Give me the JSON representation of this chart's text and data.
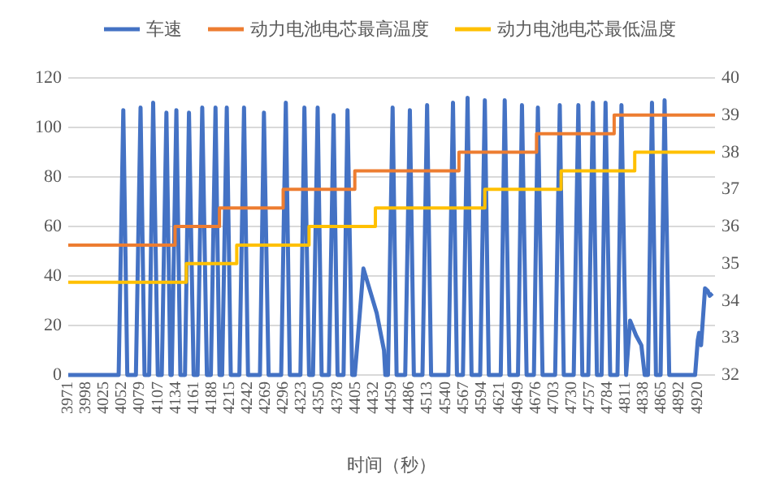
{
  "chart_data": {
    "type": "line",
    "xlabel": "时间（秒）",
    "xlim": [
      3971,
      4946
    ],
    "xticks": [
      3971,
      3998,
      4025,
      4052,
      4079,
      4107,
      4134,
      4161,
      4188,
      4215,
      4242,
      4269,
      4296,
      4323,
      4350,
      4378,
      4405,
      4432,
      4459,
      4486,
      4513,
      4540,
      4567,
      4594,
      4621,
      4649,
      4676,
      4703,
      4730,
      4757,
      4784,
      4811,
      4838,
      4865,
      4892,
      4920
    ],
    "ylim": [
      0,
      120
    ],
    "yticks": [
      0,
      20,
      40,
      60,
      80,
      100,
      120
    ],
    "y2lim": [
      32,
      40
    ],
    "y2ticks": [
      32,
      33,
      34,
      35,
      36,
      37,
      38,
      39,
      40
    ],
    "grid": "y",
    "legend": "top",
    "series": [
      {
        "name": "车速",
        "color": "#4472c4",
        "x": [
          3971,
          4047,
          4054,
          4060,
          4073,
          4080,
          4086,
          4093,
          4099,
          4106,
          4112,
          4119,
          4125,
          4127,
          4134,
          4140,
          4147,
          4153,
          4160,
          4166,
          4173,
          4180,
          4186,
          4193,
          4199,
          4203,
          4210,
          4216,
          4229,
          4236,
          4242,
          4260,
          4266,
          4273,
          4292,
          4299,
          4305,
          4321,
          4327,
          4334,
          4340,
          4347,
          4353,
          4364,
          4371,
          4377,
          4386,
          4392,
          4399,
          4403,
          4416,
          4436,
          4447,
          4449,
          4453,
          4460,
          4466,
          4479,
          4486,
          4492,
          4505,
          4512,
          4518,
          4544,
          4551,
          4557,
          4566,
          4573,
          4579,
          4592,
          4599,
          4605,
          4623,
          4629,
          4636,
          4649,
          4655,
          4662,
          4673,
          4679,
          4686,
          4705,
          4712,
          4718,
          4733,
          4740,
          4746,
          4755,
          4762,
          4768,
          4775,
          4781,
          4788,
          4799,
          4805,
          4812,
          4818,
          4827,
          4835,
          4840,
          4845,
          4851,
          4857,
          4864,
          4870,
          4877,
          4916,
          4920,
          4922,
          4925,
          4931,
          4935,
          4938,
          4942
        ],
        "values": [
          0,
          0,
          107,
          0,
          0,
          108,
          0,
          0,
          110,
          0,
          0,
          106,
          0,
          0,
          107,
          0,
          0,
          106,
          0,
          0,
          108,
          0,
          0,
          108,
          0,
          0,
          108,
          0,
          0,
          108,
          0,
          0,
          106,
          0,
          0,
          110,
          0,
          0,
          108,
          0,
          0,
          108,
          0,
          0,
          105,
          0,
          0,
          107,
          0,
          0,
          43,
          25,
          10,
          0,
          0,
          108,
          0,
          0,
          107,
          0,
          0,
          109,
          0,
          0,
          110,
          0,
          0,
          112,
          0,
          0,
          111,
          0,
          0,
          111,
          0,
          0,
          109,
          0,
          0,
          108,
          0,
          0,
          109,
          0,
          0,
          109,
          0,
          0,
          110,
          0,
          0,
          110,
          0,
          0,
          109,
          0,
          22,
          16,
          12,
          0,
          0,
          110,
          0,
          0,
          111,
          0,
          0,
          14,
          17,
          12,
          35,
          34,
          32,
          33
        ]
      },
      {
        "name": "动力电池电芯最高温度",
        "color": "#ed7d31",
        "type": "step",
        "axis": "y2",
        "x": [
          3971,
          4132,
          4199,
          4295,
          4403,
          4560,
          4677,
          4794,
          4946
        ],
        "values": [
          35.5,
          36,
          36.5,
          37,
          37.5,
          38,
          38.5,
          39,
          39
        ]
      },
      {
        "name": "动力电池电芯最低温度",
        "color": "#ffc000",
        "type": "step",
        "axis": "y2",
        "x": [
          3971,
          4149,
          4225,
          4334,
          4434,
          4599,
          4714,
          4825,
          4946
        ],
        "values": [
          34.5,
          35,
          35.5,
          36,
          36.5,
          37,
          37.5,
          38,
          38
        ]
      }
    ]
  }
}
